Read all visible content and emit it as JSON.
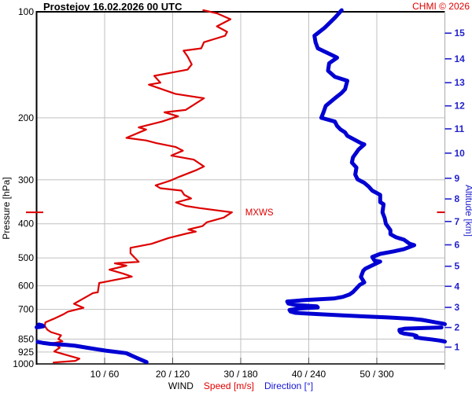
{
  "header": {
    "station": "Prostejov",
    "datetime": "16.02.2026 00 UTC",
    "copyright": "CHMI © 2026"
  },
  "axes": {
    "pressure_label": "Pressure [hPa]",
    "altitude_label": "Altitude [km]",
    "wind_label": "WIND",
    "speed_label": "Speed [m/s]",
    "direction_label": "Direction [°]"
  },
  "colors": {
    "speed_curve": "#dd0000",
    "direction_curve": "#0000d2",
    "altitude_axis": "#2222cc",
    "grid": "#c0c0c0",
    "axis_black": "#000000",
    "axis_right_gray": "#b4b4b4",
    "copyright_red": "#e00000"
  },
  "chart_data": {
    "type": "line",
    "title": "Prostejov 16.02.2026 00 UTC — vertical wind profile",
    "legend_position": "none",
    "grid": true,
    "x_axis": {
      "caption": "WIND  Speed [m/s]  Direction [°]",
      "tick_labels": [
        "10 / 60",
        "20 / 120",
        "30 / 180",
        "40 / 240",
        "50 / 300"
      ],
      "speed_ticks": [
        10,
        20,
        30,
        40,
        50
      ],
      "speed_range": [
        0,
        60
      ],
      "direction_ticks": [
        60,
        120,
        180,
        240,
        300
      ],
      "direction_range": [
        0,
        360
      ]
    },
    "pressure_axis": {
      "label": "Pressure [hPa]",
      "scale": "log",
      "range": [
        100,
        1000
      ],
      "ticks": [
        100,
        200,
        300,
        400,
        500,
        600,
        700,
        850,
        925,
        1000
      ]
    },
    "altitude_axis": {
      "label": "Altitude [km]",
      "ticks_km_hpa": [
        [
          15,
          115
        ],
        [
          14,
          136
        ],
        [
          13,
          159
        ],
        [
          12,
          185
        ],
        [
          11,
          215
        ],
        [
          10,
          252
        ],
        [
          9,
          297
        ],
        [
          8,
          340
        ],
        [
          7,
          394
        ],
        [
          6,
          459
        ],
        [
          5,
          528
        ],
        [
          4,
          602
        ],
        [
          3,
          691
        ],
        [
          2,
          788
        ],
        [
          1,
          896
        ]
      ]
    },
    "mxws": {
      "label": "MXWS",
      "pressure_hPa": 371,
      "speed_ms": 28.7
    },
    "series": [
      {
        "name": "Speed",
        "units": "m/s",
        "color": "#dd0000",
        "stroke_width": 2.2,
        "points_p_v": [
          [
            99,
            24.5
          ],
          [
            101,
            26.5
          ],
          [
            105,
            28.5
          ],
          [
            110,
            26.5
          ],
          [
            114,
            28
          ],
          [
            117,
            27.7
          ],
          [
            122,
            24.6
          ],
          [
            127,
            24.2
          ],
          [
            129,
            21.6
          ],
          [
            134,
            22.2
          ],
          [
            141,
            22.8
          ],
          [
            146,
            22.2
          ],
          [
            152,
            17.3
          ],
          [
            159,
            18.2
          ],
          [
            161,
            16.5
          ],
          [
            171,
            20.4
          ],
          [
            176,
            24.6
          ],
          [
            190,
            21.9
          ],
          [
            193,
            18.8
          ],
          [
            198,
            20.8
          ],
          [
            205,
            18.4
          ],
          [
            213,
            15.0
          ],
          [
            216,
            16.1
          ],
          [
            228,
            13.2
          ],
          [
            232,
            16.1
          ],
          [
            236,
            17.6
          ],
          [
            242,
            20.4
          ],
          [
            248,
            21.5
          ],
          [
            256,
            19.8
          ],
          [
            263,
            23.1
          ],
          [
            275,
            24.6
          ],
          [
            282,
            23.4
          ],
          [
            294,
            21.0
          ],
          [
            302,
            19.6
          ],
          [
            311,
            17.5
          ],
          [
            317,
            18.2
          ],
          [
            322,
            21.3
          ],
          [
            331,
            21.7
          ],
          [
            339,
            22.7
          ],
          [
            348,
            20.5
          ],
          [
            356,
            21.9
          ],
          [
            361,
            24.0
          ],
          [
            371,
            28.7
          ],
          [
            384,
            27.5
          ],
          [
            396,
            25.0
          ],
          [
            406,
            24.4
          ],
          [
            415,
            22.3
          ],
          [
            421,
            23.4
          ],
          [
            426,
            22.1
          ],
          [
            439,
            19.4
          ],
          [
            456,
            16.9
          ],
          [
            468,
            13.8
          ],
          [
            485,
            13.8
          ],
          [
            513,
            15.0
          ],
          [
            518,
            11.5
          ],
          [
            526,
            13.2
          ],
          [
            540,
            10.7
          ],
          [
            554,
            12.7
          ],
          [
            565,
            14.0
          ],
          [
            589,
            9.2
          ],
          [
            626,
            9.0
          ],
          [
            629,
            8.3
          ],
          [
            675,
            5.5
          ],
          [
            693,
            6.9
          ],
          [
            711,
            4.6
          ],
          [
            722,
            4.0
          ],
          [
            745,
            2.5
          ],
          [
            762,
            1.3
          ],
          [
            780,
            1.2
          ],
          [
            800,
            1.6
          ],
          [
            812,
            2.1
          ],
          [
            829,
            3.6
          ],
          [
            850,
            3.2
          ],
          [
            863,
            3.8
          ],
          [
            872,
            2.5
          ],
          [
            899,
            3.4
          ],
          [
            922,
            2.6
          ],
          [
            946,
            4.6
          ],
          [
            966,
            6.3
          ],
          [
            980,
            5.7
          ],
          [
            991,
            2.5
          ]
        ]
      },
      {
        "name": "Direction",
        "units": "°",
        "color": "#0000d2",
        "stroke_width": 5,
        "wrap_at": 360,
        "points_p_v": [
          [
            99,
            269
          ],
          [
            104,
            263
          ],
          [
            111,
            254
          ],
          [
            117,
            245
          ],
          [
            122,
            246
          ],
          [
            127,
            248
          ],
          [
            133,
            261
          ],
          [
            135,
            265
          ],
          [
            140,
            258
          ],
          [
            147,
            257
          ],
          [
            153,
            263
          ],
          [
            157,
            274
          ],
          [
            166,
            272
          ],
          [
            170,
            269
          ],
          [
            176,
            263
          ],
          [
            185,
            255
          ],
          [
            193,
            253
          ],
          [
            200,
            251
          ],
          [
            205,
            263
          ],
          [
            211,
            265
          ],
          [
            216,
            268
          ],
          [
            220,
            272
          ],
          [
            225,
            274
          ],
          [
            236,
            286
          ],
          [
            238,
            289
          ],
          [
            246,
            284
          ],
          [
            259,
            279
          ],
          [
            268,
            278
          ],
          [
            277,
            282
          ],
          [
            290,
            281
          ],
          [
            299,
            283
          ],
          [
            306,
            289
          ],
          [
            314,
            293
          ],
          [
            322,
            296
          ],
          [
            331,
            303
          ],
          [
            347,
            303
          ],
          [
            352,
            306
          ],
          [
            371,
            305
          ],
          [
            386,
            307
          ],
          [
            400,
            308
          ],
          [
            417,
            312
          ],
          [
            428,
            312
          ],
          [
            437,
            317
          ],
          [
            444,
            324
          ],
          [
            456,
            329
          ],
          [
            460,
            333
          ],
          [
            472,
            324
          ],
          [
            479,
            315
          ],
          [
            487,
            303
          ],
          [
            497,
            296
          ],
          [
            509,
            298
          ],
          [
            512,
            303
          ],
          [
            536,
            290
          ],
          [
            544,
            288
          ],
          [
            566,
            286
          ],
          [
            587,
            289
          ],
          [
            596,
            285
          ],
          [
            625,
            279
          ],
          [
            635,
            276
          ],
          [
            645,
            270
          ],
          [
            652,
            262
          ],
          [
            658,
            238
          ],
          [
            665,
            221
          ],
          [
            674,
            222
          ],
          [
            680,
            228
          ],
          [
            686,
            247
          ],
          [
            691,
            248
          ],
          [
            696,
            232
          ],
          [
            703,
            223
          ],
          [
            710,
            224
          ],
          [
            716,
            228
          ],
          [
            722,
            248
          ],
          [
            728,
            270
          ],
          [
            733,
            290
          ],
          [
            738,
            310
          ],
          [
            744,
            330
          ],
          [
            750,
            340
          ],
          [
            757,
            347
          ],
          [
            763,
            353
          ],
          [
            768,
            358
          ],
          [
            771,
            360
          ],
          [
            773,
            2
          ],
          [
            777,
            5
          ],
          [
            782,
            6
          ],
          [
            786,
            2
          ],
          [
            787,
            0
          ],
          [
            788,
            357
          ],
          [
            791,
            340
          ],
          [
            794,
            325
          ],
          [
            800,
            320
          ],
          [
            806,
            320
          ],
          [
            814,
            321
          ],
          [
            820,
            324
          ],
          [
            827,
            332
          ],
          [
            833,
            335
          ],
          [
            840,
            334
          ],
          [
            846,
            340
          ],
          [
            852,
            348
          ],
          [
            858,
            355
          ],
          [
            864,
            360
          ],
          [
            866,
            1
          ],
          [
            871,
            5
          ],
          [
            877,
            12
          ],
          [
            883,
            26
          ],
          [
            888,
            34
          ],
          [
            900,
            45
          ],
          [
            917,
            61
          ],
          [
            932,
            79
          ],
          [
            960,
            88
          ],
          [
            988,
            97
          ]
        ]
      }
    ]
  }
}
